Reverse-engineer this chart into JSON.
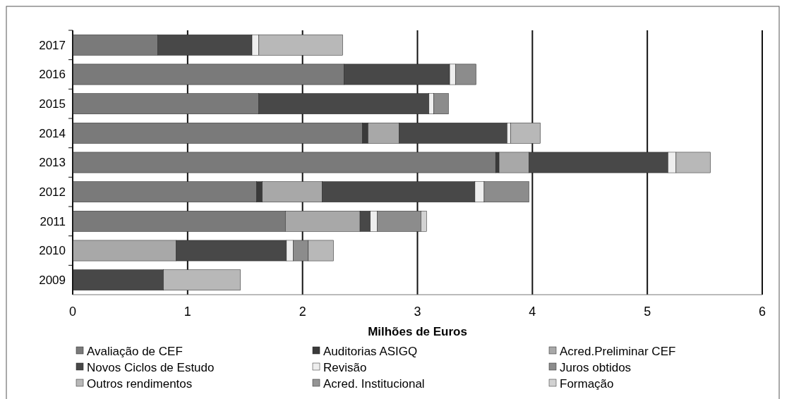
{
  "chart_data": {
    "type": "bar",
    "orientation": "horizontal",
    "stacked": true,
    "xlabel": "Milhões de Euros",
    "categories": [
      "2017",
      "2016",
      "2015",
      "2014",
      "2013",
      "2012",
      "2011",
      "2010",
      "2009"
    ],
    "xlim": [
      0,
      6
    ],
    "xticks": [
      0,
      1,
      2,
      3,
      4,
      5,
      6
    ],
    "grid": "x",
    "legend": "bottom",
    "series": [
      {
        "name": "Avaliação de CEF",
        "color": "#7a7a7a",
        "values": [
          0.74,
          2.36,
          1.62,
          2.52,
          3.68,
          1.6,
          1.85,
          null,
          null
        ]
      },
      {
        "name": "Auditorias ASIGQ",
        "color": "#3a3a3a",
        "values": [
          null,
          null,
          null,
          0.05,
          0.03,
          0.05,
          null,
          null,
          null
        ]
      },
      {
        "name": "Acred.Preliminar CEF",
        "color": "#a8a8a8",
        "values": [
          null,
          null,
          null,
          0.27,
          0.26,
          0.52,
          0.65,
          0.9,
          null
        ]
      },
      {
        "name": "Novos Ciclos de Estudo",
        "color": "#484848",
        "values": [
          0.82,
          0.92,
          1.48,
          0.94,
          1.21,
          1.33,
          0.09,
          0.96,
          0.79
        ]
      },
      {
        "name": "Revisão",
        "color": "#eeeeee",
        "values": [
          0.06,
          0.05,
          0.04,
          0.03,
          0.07,
          0.08,
          0.06,
          0.06,
          null
        ]
      },
      {
        "name": "Juros obtidos",
        "color": "#8c8c8c",
        "values": [
          null,
          0.18,
          0.13,
          null,
          null,
          0.39,
          0.38,
          0.13,
          null
        ]
      },
      {
        "name": "Outros rendimentos",
        "color": "#b8b8b8",
        "values": [
          0.73,
          null,
          null,
          0.26,
          0.3,
          null,
          null,
          0.22,
          0.67
        ]
      },
      {
        "name": "Acred. Institucional",
        "color": "#959595",
        "values": [
          null,
          null,
          null,
          null,
          null,
          null,
          null,
          null,
          null
        ]
      },
      {
        "name": "Formação",
        "color": "#d2d2d2",
        "values": [
          null,
          null,
          null,
          null,
          null,
          null,
          0.05,
          null,
          null
        ]
      }
    ]
  }
}
